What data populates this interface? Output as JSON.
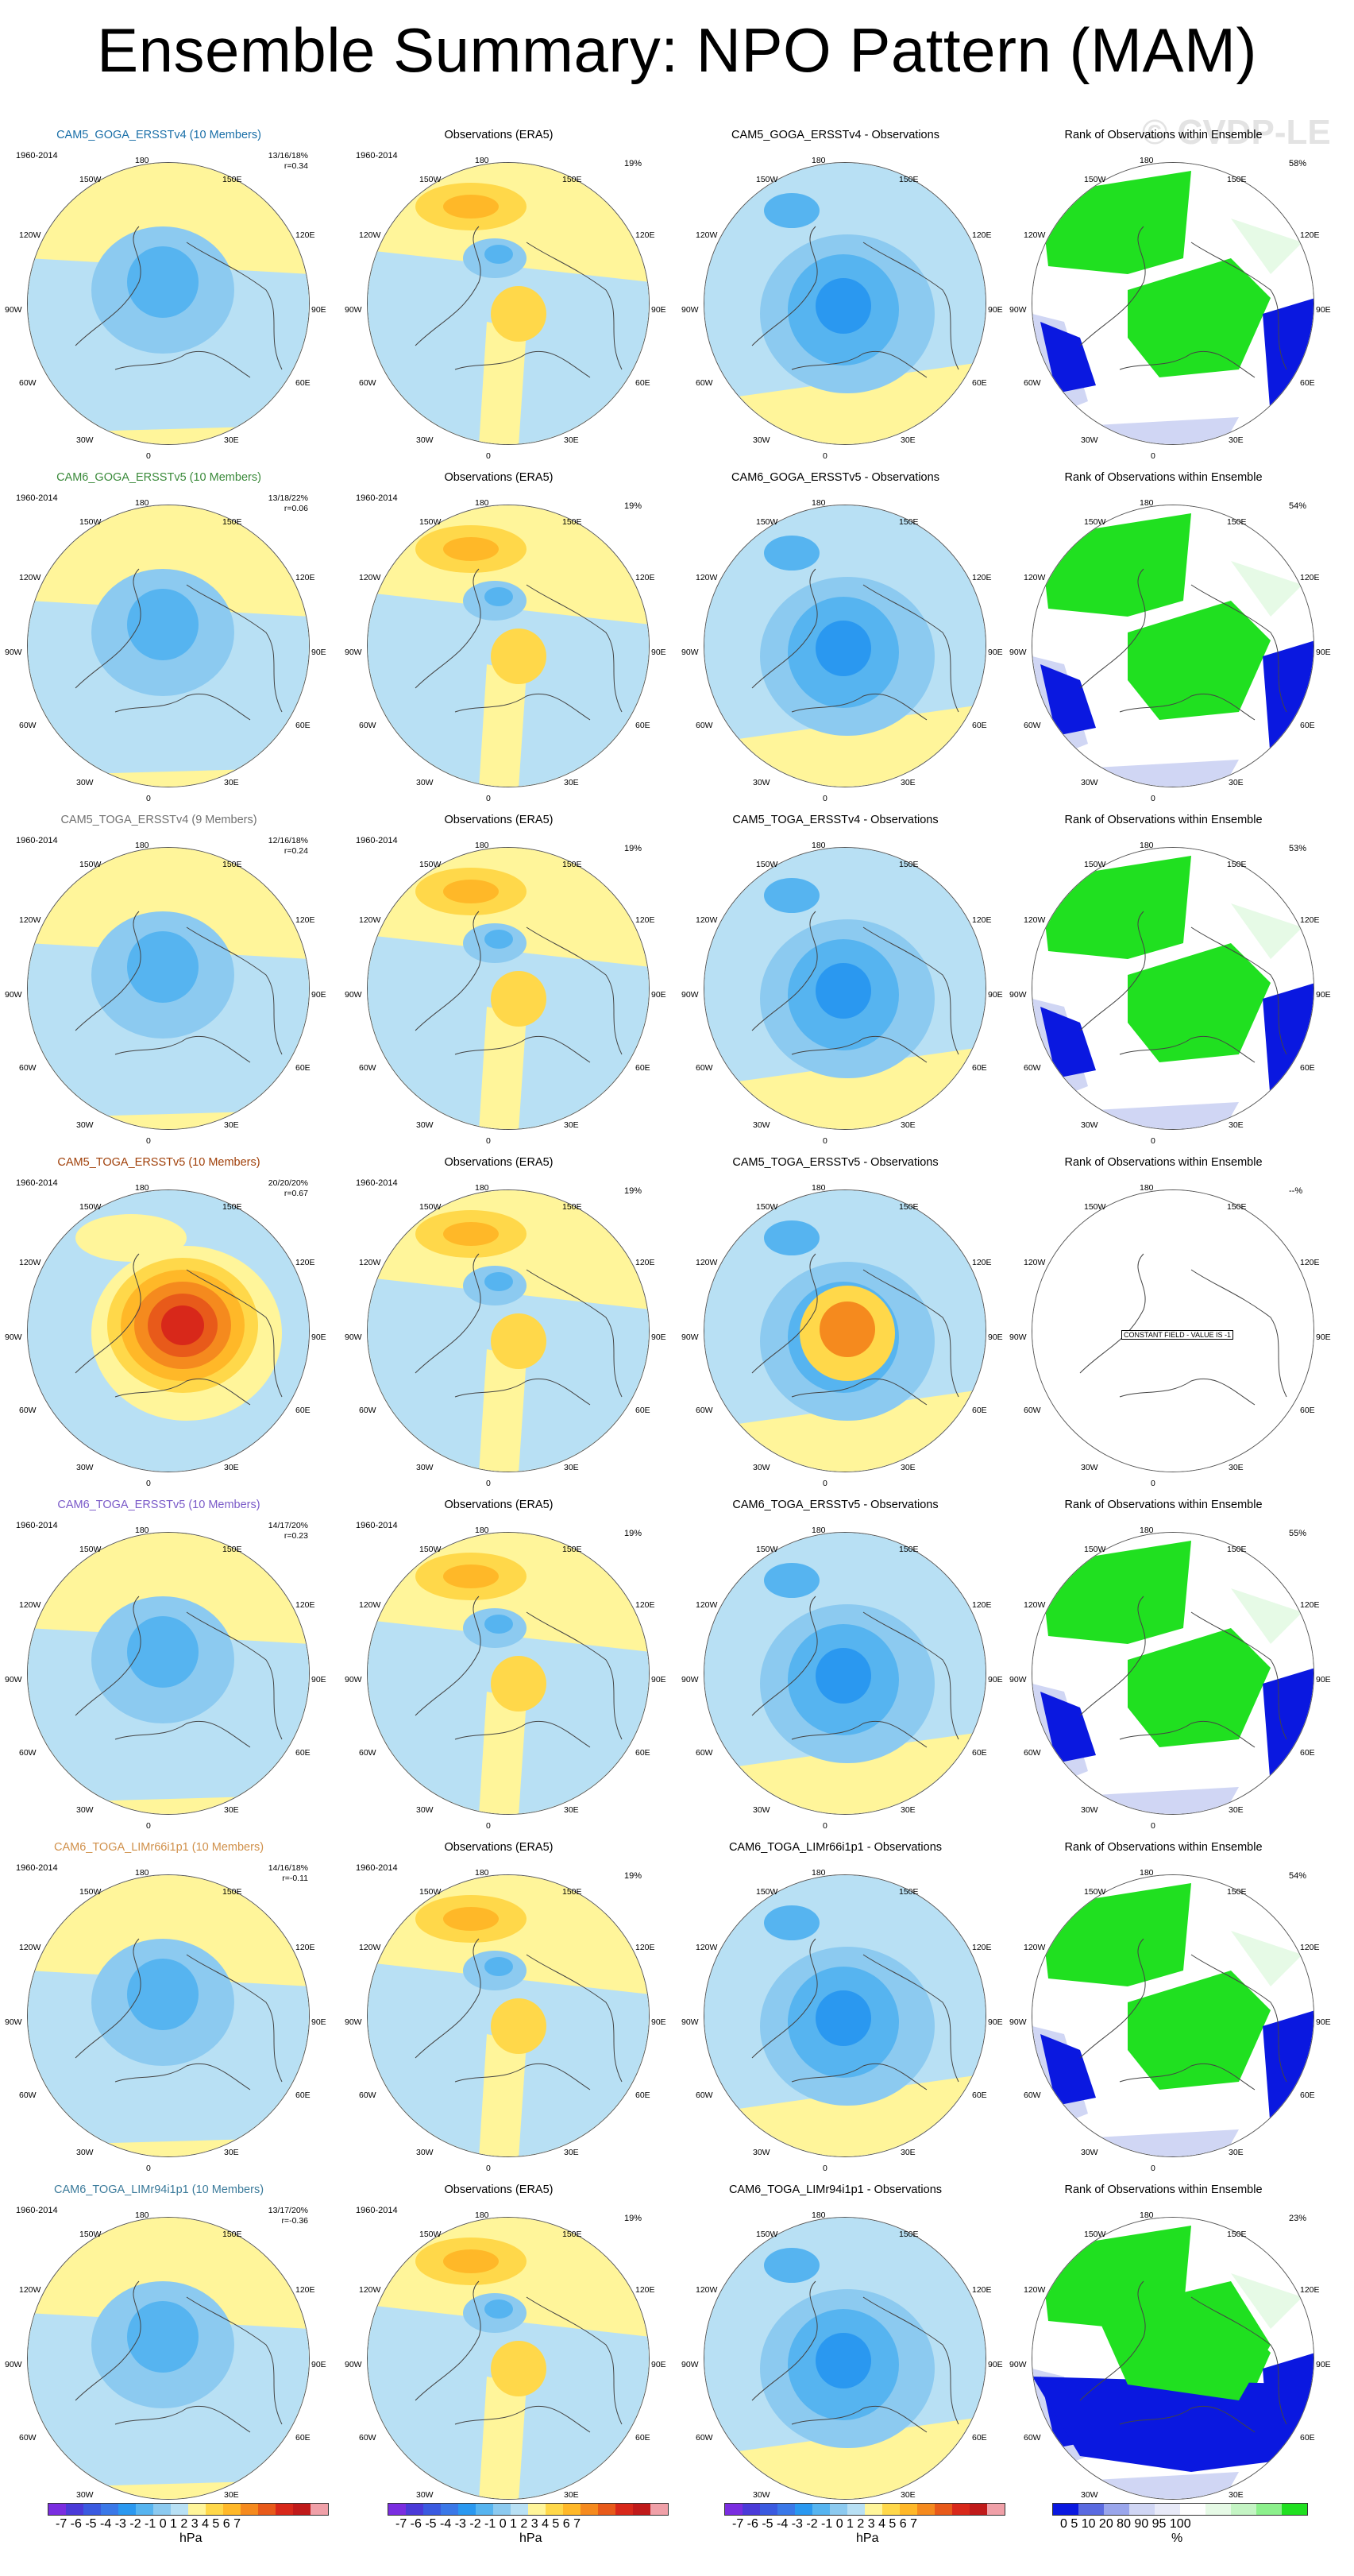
{
  "title": "Ensemble Summary: NPO Pattern (MAM)",
  "watermark": "© CVDP-LE",
  "rows": [
    {
      "model": {
        "title": "CAM5_GOGA_ERSSTv4 (10 Members)",
        "color": "#1a6fa8",
        "years": "1960-2014",
        "stats": [
          "13/16/18%",
          "r=0.34"
        ]
      },
      "obs": {
        "title": "Observations (ERA5)",
        "years": "1960-2014",
        "pct": "19%"
      },
      "diff": {
        "title": "CAM5_GOGA_ERSSTv4 - Observations"
      },
      "rank": {
        "title": "Rank of Observations within Ensemble",
        "pct": "58%"
      }
    },
    {
      "model": {
        "title": "CAM6_GOGA_ERSSTv5 (10 Members)",
        "color": "#3a8a3a",
        "years": "1960-2014",
        "stats": [
          "13/18/22%",
          "r=0.06"
        ]
      },
      "obs": {
        "title": "Observations (ERA5)",
        "years": "1960-2014",
        "pct": "19%"
      },
      "diff": {
        "title": "CAM6_GOGA_ERSSTv5 - Observations"
      },
      "rank": {
        "title": "Rank of Observations within Ensemble",
        "pct": "54%"
      }
    },
    {
      "model": {
        "title": "CAM5_TOGA_ERSSTv4 (9 Members)",
        "color": "#707070",
        "years": "1960-2014",
        "stats": [
          "12/16/18%",
          "r=0.24"
        ]
      },
      "obs": {
        "title": "Observations (ERA5)",
        "years": "1960-2014",
        "pct": "19%"
      },
      "diff": {
        "title": "CAM5_TOGA_ERSSTv4 - Observations"
      },
      "rank": {
        "title": "Rank of Observations within Ensemble",
        "pct": "53%"
      }
    },
    {
      "model": {
        "title": "CAM5_TOGA_ERSSTv5 (10 Members)",
        "color": "#a0400a",
        "years": "1960-2014",
        "stats": [
          "20/20/20%",
          "r=0.67"
        ]
      },
      "obs": {
        "title": "Observations (ERA5)",
        "years": "1960-2014",
        "pct": "19%"
      },
      "diff": {
        "title": "CAM5_TOGA_ERSSTv5 - Observations"
      },
      "rank": {
        "title": "Rank of Observations within Ensemble",
        "pct": "--%",
        "constant": "CONSTANT FIELD - VALUE IS -1"
      }
    },
    {
      "model": {
        "title": "CAM6_TOGA_ERSSTv5 (10 Members)",
        "color": "#7a5ac8",
        "years": "1960-2014",
        "stats": [
          "14/17/20%",
          "r=0.23"
        ]
      },
      "obs": {
        "title": "Observations (ERA5)",
        "years": "1960-2014",
        "pct": "19%"
      },
      "diff": {
        "title": "CAM6_TOGA_ERSSTv5 - Observations"
      },
      "rank": {
        "title": "Rank of Observations within Ensemble",
        "pct": "55%"
      }
    },
    {
      "model": {
        "title": "CAM6_TOGA_LIMr66i1p1 (10 Members)",
        "color": "#d0904a",
        "years": "1960-2014",
        "stats": [
          "14/16/18%",
          "r=-0.11"
        ]
      },
      "obs": {
        "title": "Observations (ERA5)",
        "years": "1960-2014",
        "pct": "19%"
      },
      "diff": {
        "title": "CAM6_TOGA_LIMr66i1p1 - Observations"
      },
      "rank": {
        "title": "Rank of Observations within Ensemble",
        "pct": "54%"
      }
    },
    {
      "model": {
        "title": "CAM6_TOGA_LIMr94i1p1 (10 Members)",
        "color": "#3a7a9a",
        "years": "1960-2014",
        "stats": [
          "13/17/20%",
          "r=-0.36"
        ]
      },
      "obs": {
        "title": "Observations (ERA5)",
        "years": "1960-2014",
        "pct": "19%"
      },
      "diff": {
        "title": "CAM6_TOGA_LIMr94i1p1 - Observations"
      },
      "rank": {
        "title": "Rank of Observations within Ensemble",
        "pct": "23%"
      }
    }
  ],
  "map_labels": {
    "top": "180",
    "lon150w": "150W",
    "lon150e": "150E",
    "lon120w": "120W",
    "lon120e": "120E",
    "lon90w": "90W",
    "lon90e": "90E",
    "lon60w": "60W",
    "lon60e": "60E",
    "lon30w": "30W",
    "lon30e": "30E",
    "bottom": "0"
  },
  "colorbars": {
    "hpa": {
      "ticks": "-7 -6 -5 -4 -3 -2 -1 0 1 2 3 4 5 6 7",
      "units": "hPa",
      "colors": [
        "#7a2de0",
        "#4a3ad8",
        "#3a5ae0",
        "#3a78e8",
        "#2a98f0",
        "#56b4f0",
        "#8ccaf0",
        "#b8e0f4",
        "#fff59a",
        "#ffd84a",
        "#ffb828",
        "#f58a1e",
        "#e85a1a",
        "#d8281a",
        "#c01a1a",
        "#f0a0a8"
      ]
    },
    "pct": {
      "ticks": "0   5   10        20      80     90  95 100",
      "units": "%",
      "colors": [
        "#0a18e0",
        "#5a6ae0",
        "#9aa6ec",
        "#d0d6f4",
        "#e8eaf8",
        "#ffffff",
        "#e6fae6",
        "#c4f4c4",
        "#8cf08c",
        "#20e020"
      ]
    }
  }
}
